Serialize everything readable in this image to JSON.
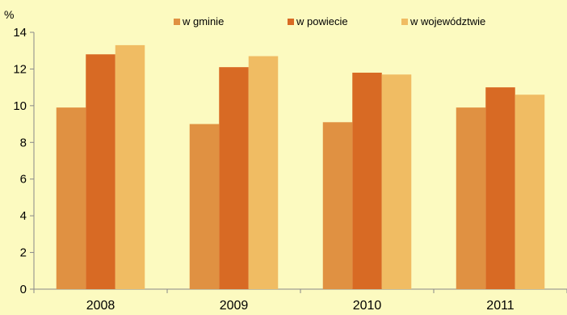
{
  "chart_data": {
    "type": "bar",
    "categories": [
      "2008",
      "2009",
      "2010",
      "2011"
    ],
    "series": [
      {
        "name": "w gminie",
        "values": [
          9.9,
          9.0,
          9.1,
          9.9
        ],
        "color": "#e09142"
      },
      {
        "name": "w powiecie",
        "values": [
          12.8,
          12.1,
          11.8,
          11.0
        ],
        "color": "#d86a24"
      },
      {
        "name": "w województwie",
        "values": [
          13.3,
          12.7,
          11.7,
          10.6
        ],
        "color": "#f0bc63"
      }
    ],
    "y_unit_label": "%",
    "ylim": [
      0,
      14
    ],
    "yticks": [
      "0",
      "2",
      "4",
      "6",
      "8",
      "10",
      "12",
      "14"
    ],
    "grid": false,
    "legend_position": "top",
    "background_color": "#fcfac0"
  }
}
